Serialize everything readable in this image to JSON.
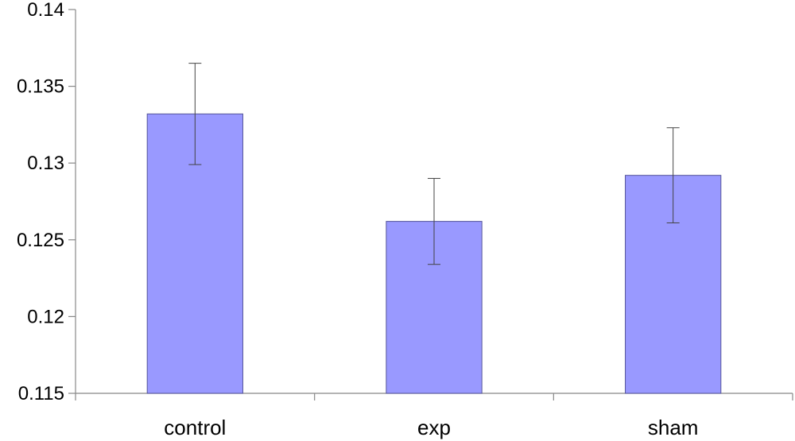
{
  "chart_data": {
    "type": "bar",
    "categories": [
      "control",
      "exp",
      "sham"
    ],
    "values": [
      0.1332,
      0.1262,
      0.1292
    ],
    "error": [
      0.0033,
      0.0028,
      0.0031
    ],
    "ylim": [
      0.115,
      0.14
    ],
    "yticks": [
      "0.115",
      "0.12",
      "0.125",
      "0.13",
      "0.135",
      "0.14"
    ],
    "ytick_values": [
      0.115,
      0.12,
      0.125,
      0.13,
      0.135,
      0.14
    ],
    "bar_color": "#9999ff",
    "bar_edge_color": "#555599",
    "grid": false,
    "legend": "none"
  }
}
